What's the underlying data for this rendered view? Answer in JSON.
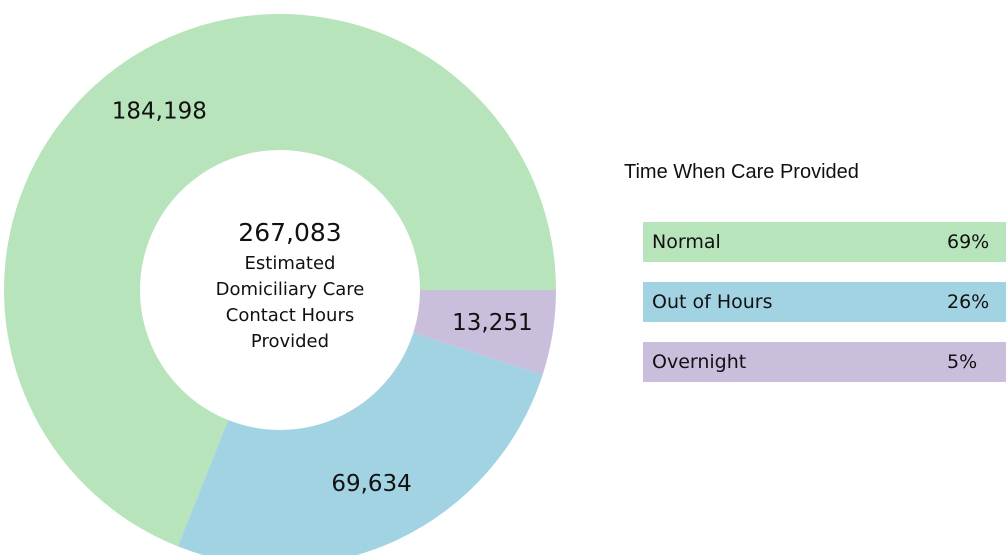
{
  "chart_data": {
    "type": "donut",
    "categories": [
      "Normal",
      "Out of Hours",
      "Overnight"
    ],
    "values": [
      184198,
      69634,
      13251
    ],
    "value_labels": [
      "184,198",
      "69,634",
      "13,251"
    ],
    "colors": [
      "#b8e4bb",
      "#a2d3e2",
      "#c9bedb"
    ],
    "total": 267083,
    "total_label": "267,083",
    "center_label": "Estimated Domiciliary Care Contact Hours Provided",
    "legend_title": "Time When Care Provided",
    "percentages": [
      69,
      26,
      5
    ],
    "percentage_labels": [
      "69%",
      "26%",
      "5%"
    ]
  }
}
